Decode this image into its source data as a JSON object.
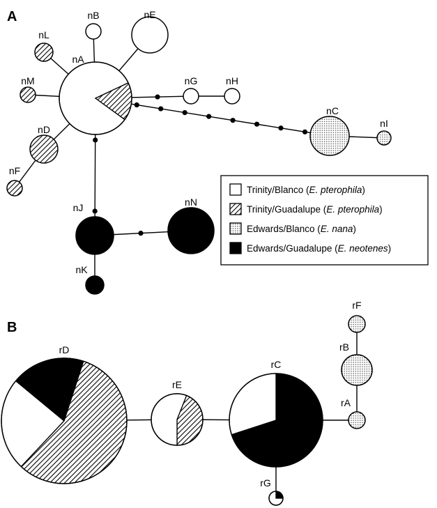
{
  "panels": {
    "a": "A",
    "b": "B"
  },
  "legend": {
    "items": [
      {
        "pattern": "white",
        "text": "Trinity/Blanco (",
        "species": "E. pterophila",
        "close": ")"
      },
      {
        "pattern": "hatched",
        "text": "Trinity/Guadalupe (",
        "species": "E. pterophila",
        "close": ")"
      },
      {
        "pattern": "dotted",
        "text": "Edwards/Blanco (",
        "species": "E. nana",
        "close": ")"
      },
      {
        "pattern": "black",
        "text": "Edwards/Guadalupe (",
        "species": "E. neotenes",
        "close": ")"
      }
    ]
  },
  "network_a": {
    "nodes": [
      {
        "id": "nA",
        "label": "nA",
        "composition": {
          "white": 0.83,
          "hatched": 0.17
        }
      },
      {
        "id": "nB",
        "label": "nB",
        "composition": {
          "white": 1
        }
      },
      {
        "id": "nE",
        "label": "nE",
        "composition": {
          "white": 1
        }
      },
      {
        "id": "nL",
        "label": "nL",
        "composition": {
          "hatched": 1
        }
      },
      {
        "id": "nM",
        "label": "nM",
        "composition": {
          "hatched": 1
        }
      },
      {
        "id": "nG",
        "label": "nG",
        "composition": {
          "white": 1
        }
      },
      {
        "id": "nH",
        "label": "nH",
        "composition": {
          "white": 1
        }
      },
      {
        "id": "nC",
        "label": "nC",
        "composition": {
          "dotted": 1
        }
      },
      {
        "id": "nI",
        "label": "nI",
        "composition": {
          "dotted": 1
        }
      },
      {
        "id": "nD",
        "label": "nD",
        "composition": {
          "hatched": 1
        }
      },
      {
        "id": "nF",
        "label": "nF",
        "composition": {
          "hatched": 1
        }
      },
      {
        "id": "nJ",
        "label": "nJ",
        "composition": {
          "black": 1
        }
      },
      {
        "id": "nN",
        "label": "nN",
        "composition": {
          "black": 1
        }
      },
      {
        "id": "nK",
        "label": "nK",
        "composition": {
          "black": 1
        }
      }
    ],
    "edges": [
      {
        "from": "nA",
        "to": "nB",
        "missing_steps": 0
      },
      {
        "from": "nA",
        "to": "nE",
        "missing_steps": 0
      },
      {
        "from": "nA",
        "to": "nL",
        "missing_steps": 0
      },
      {
        "from": "nA",
        "to": "nM",
        "missing_steps": 0
      },
      {
        "from": "nA",
        "to": "nD",
        "missing_steps": 0
      },
      {
        "from": "nD",
        "to": "nF",
        "missing_steps": 0
      },
      {
        "from": "nA",
        "to": "nG",
        "missing_steps": 1
      },
      {
        "from": "nG",
        "to": "nH",
        "missing_steps": 0
      },
      {
        "from": "nA",
        "to": "nC",
        "missing_steps": 8
      },
      {
        "from": "nC",
        "to": "nI",
        "missing_steps": 0
      },
      {
        "from": "nA",
        "to": "nJ",
        "missing_steps": 2
      },
      {
        "from": "nJ",
        "to": "nN",
        "missing_steps": 1
      },
      {
        "from": "nJ",
        "to": "nK",
        "missing_steps": 0
      }
    ]
  },
  "network_b": {
    "nodes": [
      {
        "id": "rD",
        "label": "rD",
        "composition": {
          "white": 0.24,
          "black": 0.19,
          "hatched": 0.57
        }
      },
      {
        "id": "rE",
        "label": "rE",
        "composition": {
          "white": 0.56,
          "hatched": 0.44
        }
      },
      {
        "id": "rC",
        "label": "rC",
        "composition": {
          "white": 0.3,
          "black": 0.7
        }
      },
      {
        "id": "rG",
        "label": "rG",
        "composition": {
          "white": 0.75,
          "black": 0.25
        }
      },
      {
        "id": "rF",
        "label": "rF",
        "composition": {
          "dotted": 1
        }
      },
      {
        "id": "rB",
        "label": "rB",
        "composition": {
          "dotted": 1
        }
      },
      {
        "id": "rA",
        "label": "rA",
        "composition": {
          "dotted": 1
        }
      }
    ],
    "edges": [
      {
        "from": "rD",
        "to": "rE"
      },
      {
        "from": "rE",
        "to": "rC"
      },
      {
        "from": "rC",
        "to": "rA"
      },
      {
        "from": "rA",
        "to": "rB"
      },
      {
        "from": "rB",
        "to": "rF"
      },
      {
        "from": "rC",
        "to": "rG"
      }
    ]
  }
}
